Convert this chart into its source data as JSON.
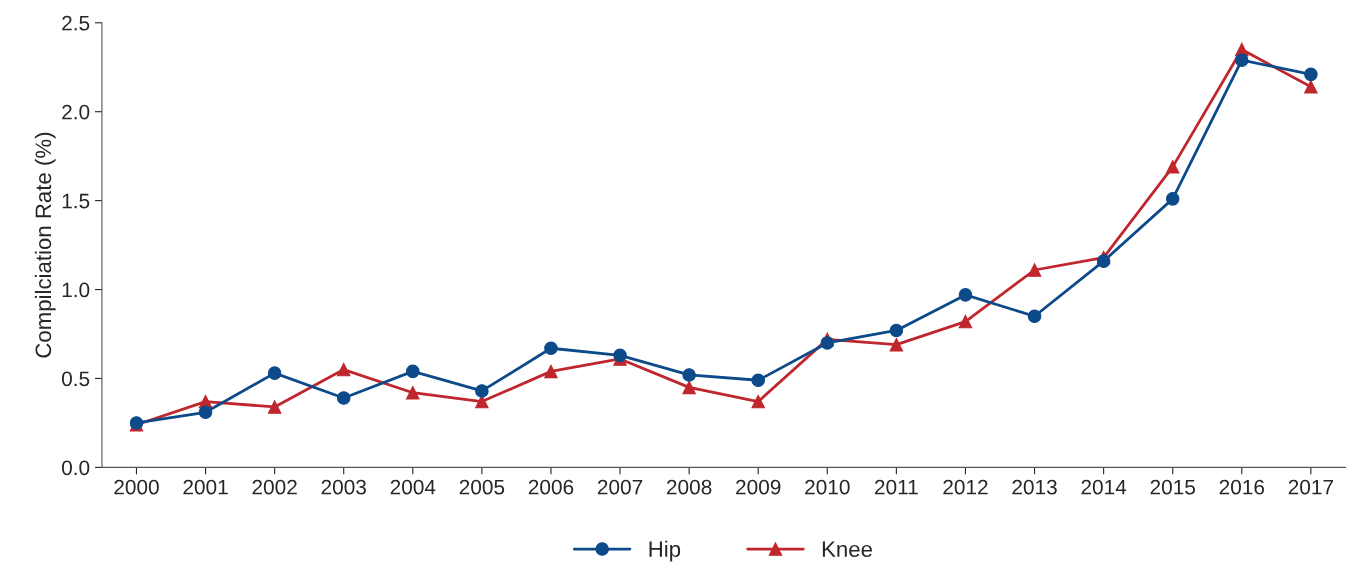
{
  "chart_data": {
    "type": "line",
    "ylabel": "Compilciation Rate (%)",
    "categories": [
      "2000",
      "2001",
      "2002",
      "2003",
      "2004",
      "2005",
      "2006",
      "2007",
      "2008",
      "2009",
      "2010",
      "2011",
      "2012",
      "2013",
      "2014",
      "2015",
      "2016",
      "2017"
    ],
    "series": [
      {
        "name": "Hip",
        "color": "#0d4a8a",
        "marker": "circle",
        "values": [
          0.25,
          0.31,
          0.53,
          0.39,
          0.54,
          0.43,
          0.67,
          0.63,
          0.52,
          0.49,
          0.7,
          0.77,
          0.97,
          0.85,
          1.16,
          1.51,
          2.29,
          2.21
        ]
      },
      {
        "name": "Knee",
        "color": "#c0262d",
        "marker": "triangle",
        "values": [
          0.24,
          0.37,
          0.34,
          0.55,
          0.42,
          0.37,
          0.54,
          0.61,
          0.45,
          0.37,
          0.72,
          0.69,
          0.82,
          1.11,
          1.18,
          1.69,
          2.35,
          2.14
        ]
      }
    ],
    "ylim": [
      0,
      2.5
    ],
    "yticks": [
      {
        "value": 0,
        "label": "0.0"
      },
      {
        "value": 0.5,
        "label": "0.5"
      },
      {
        "value": 1,
        "label": "1.0"
      },
      {
        "value": 1.5,
        "label": "1.5"
      },
      {
        "value": 2,
        "label": "2.0"
      },
      {
        "value": 2.5,
        "label": "2.5"
      }
    ],
    "grid": false,
    "legend": "bottom",
    "line_style": "solid"
  }
}
